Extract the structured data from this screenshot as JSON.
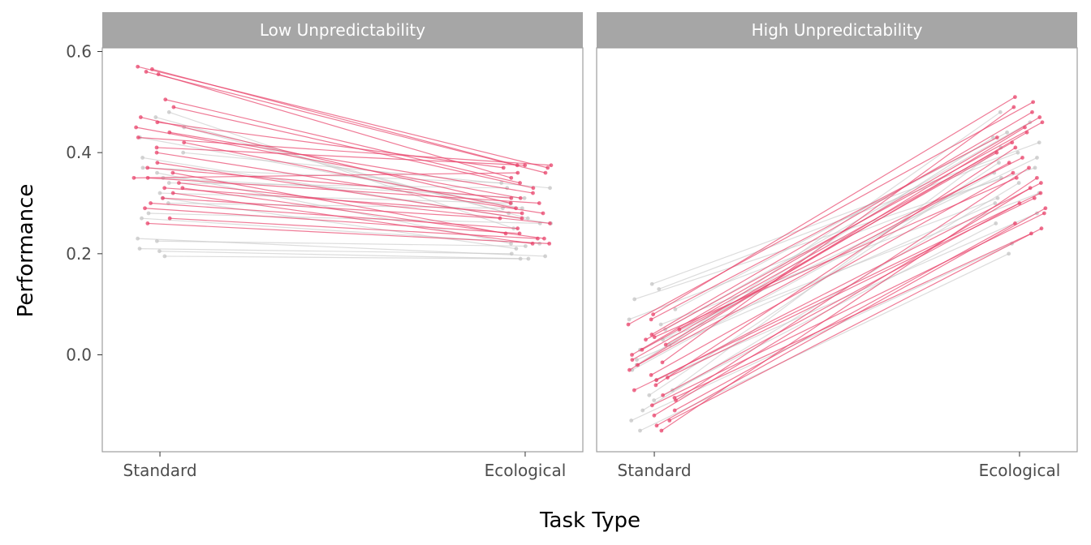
{
  "chart_data": {
    "type": "line",
    "xlabel": "Task Type",
    "ylabel": "Performance",
    "x_categories": [
      "Standard",
      "Ecological"
    ],
    "y_ticks": [
      "0.0",
      "0.2",
      "0.4",
      "0.6"
    ],
    "ylim": [
      -0.19,
      0.6
    ],
    "grid": false,
    "colors": {
      "highlight": "#e8416a",
      "muted": "#c4c4c4",
      "strip": "#a6a6a6",
      "frame": "#9e9e9e"
    },
    "panels": [
      {
        "label": "Low Unpredictability",
        "series": [
          {
            "color": "muted",
            "values": [
              0.205,
              0.19
            ]
          },
          {
            "color": "muted",
            "values": [
              0.21,
              0.2
            ]
          },
          {
            "color": "muted",
            "values": [
              0.225,
              0.215
            ]
          },
          {
            "color": "muted",
            "values": [
              0.23,
              0.195
            ]
          },
          {
            "color": "muted",
            "values": [
              0.195,
              0.19
            ]
          },
          {
            "color": "muted",
            "values": [
              0.28,
              0.26
            ]
          },
          {
            "color": "muted",
            "values": [
              0.3,
              0.29
            ]
          },
          {
            "color": "muted",
            "values": [
              0.32,
              0.3
            ]
          },
          {
            "color": "muted",
            "values": [
              0.34,
              0.33
            ]
          },
          {
            "color": "muted",
            "values": [
              0.35,
              0.31
            ]
          },
          {
            "color": "muted",
            "values": [
              0.37,
              0.34
            ]
          },
          {
            "color": "muted",
            "values": [
              0.4,
              0.33
            ]
          },
          {
            "color": "muted",
            "values": [
              0.43,
              0.29
            ]
          },
          {
            "color": "muted",
            "values": [
              0.45,
              0.28
            ]
          },
          {
            "color": "muted",
            "values": [
              0.47,
              0.27
            ]
          },
          {
            "color": "muted",
            "values": [
              0.48,
              0.25
            ]
          },
          {
            "color": "muted",
            "values": [
              0.39,
              0.26
            ]
          },
          {
            "color": "muted",
            "values": [
              0.36,
              0.22
            ]
          },
          {
            "color": "muted",
            "values": [
              0.31,
              0.21
            ]
          },
          {
            "color": "muted",
            "values": [
              0.27,
              0.22
            ]
          },
          {
            "color": "highlight",
            "values": [
              0.565,
              0.375
            ]
          },
          {
            "color": "highlight",
            "values": [
              0.57,
              0.37
            ]
          },
          {
            "color": "highlight",
            "values": [
              0.56,
              0.36
            ]
          },
          {
            "color": "highlight",
            "values": [
              0.555,
              0.35
            ]
          },
          {
            "color": "highlight",
            "values": [
              0.505,
              0.34
            ]
          },
          {
            "color": "highlight",
            "values": [
              0.49,
              0.33
            ]
          },
          {
            "color": "highlight",
            "values": [
              0.47,
              0.3
            ]
          },
          {
            "color": "highlight",
            "values": [
              0.46,
              0.37
            ]
          },
          {
            "color": "highlight",
            "values": [
              0.45,
              0.31
            ]
          },
          {
            "color": "highlight",
            "values": [
              0.44,
              0.32
            ]
          },
          {
            "color": "highlight",
            "values": [
              0.42,
              0.29
            ]
          },
          {
            "color": "highlight",
            "values": [
              0.41,
              0.375
            ]
          },
          {
            "color": "highlight",
            "values": [
              0.4,
              0.28
            ]
          },
          {
            "color": "highlight",
            "values": [
              0.38,
              0.27
            ]
          },
          {
            "color": "highlight",
            "values": [
              0.37,
              0.31
            ]
          },
          {
            "color": "highlight",
            "values": [
              0.36,
              0.24
            ]
          },
          {
            "color": "highlight",
            "values": [
              0.35,
              0.3
            ]
          },
          {
            "color": "highlight",
            "values": [
              0.34,
              0.26
            ]
          },
          {
            "color": "highlight",
            "values": [
              0.33,
              0.23
            ]
          },
          {
            "color": "highlight",
            "values": [
              0.32,
              0.22
            ]
          },
          {
            "color": "highlight",
            "values": [
              0.31,
              0.27
            ]
          },
          {
            "color": "highlight",
            "values": [
              0.3,
              0.25
            ]
          },
          {
            "color": "highlight",
            "values": [
              0.29,
              0.24
            ]
          },
          {
            "color": "highlight",
            "values": [
              0.27,
              0.23
            ]
          },
          {
            "color": "highlight",
            "values": [
              0.26,
              0.22
            ]
          },
          {
            "color": "highlight",
            "values": [
              0.35,
              0.36
            ]
          },
          {
            "color": "highlight",
            "values": [
              0.33,
              0.28
            ]
          },
          {
            "color": "highlight",
            "values": [
              0.43,
              0.375
            ]
          }
        ]
      },
      {
        "label": "High Unpredictability",
        "series": [
          {
            "color": "muted",
            "values": [
              0.14,
              0.42
            ]
          },
          {
            "color": "muted",
            "values": [
              0.13,
              0.4
            ]
          },
          {
            "color": "muted",
            "values": [
              0.11,
              0.37
            ]
          },
          {
            "color": "muted",
            "values": [
              0.09,
              0.44
            ]
          },
          {
            "color": "muted",
            "values": [
              0.07,
              0.35
            ]
          },
          {
            "color": "muted",
            "values": [
              0.05,
              0.46
            ]
          },
          {
            "color": "muted",
            "values": [
              0.03,
              0.32
            ]
          },
          {
            "color": "muted",
            "values": [
              0.01,
              0.39
            ]
          },
          {
            "color": "muted",
            "values": [
              -0.01,
              0.3
            ]
          },
          {
            "color": "muted",
            "values": [
              -0.03,
              0.36
            ]
          },
          {
            "color": "muted",
            "values": [
              -0.05,
              0.28
            ]
          },
          {
            "color": "muted",
            "values": [
              -0.07,
              0.41
            ]
          },
          {
            "color": "muted",
            "values": [
              -0.09,
              0.26
            ]
          },
          {
            "color": "muted",
            "values": [
              -0.11,
              0.34
            ]
          },
          {
            "color": "muted",
            "values": [
              -0.13,
              0.22
            ]
          },
          {
            "color": "muted",
            "values": [
              -0.15,
              0.2
            ]
          },
          {
            "color": "muted",
            "values": [
              0.02,
              0.48
            ]
          },
          {
            "color": "muted",
            "values": [
              -0.02,
              0.43
            ]
          },
          {
            "color": "muted",
            "values": [
              0.06,
              0.31
            ]
          },
          {
            "color": "muted",
            "values": [
              -0.08,
              0.38
            ]
          },
          {
            "color": "highlight",
            "values": [
              0.08,
              0.51
            ]
          },
          {
            "color": "highlight",
            "values": [
              0.06,
              0.5
            ]
          },
          {
            "color": "highlight",
            "values": [
              0.04,
              0.48
            ]
          },
          {
            "color": "highlight",
            "values": [
              0.03,
              0.46
            ]
          },
          {
            "color": "highlight",
            "values": [
              0.02,
              0.44
            ]
          },
          {
            "color": "highlight",
            "values": [
              0.01,
              0.42
            ]
          },
          {
            "color": "highlight",
            "values": [
              0.0,
              0.47
            ]
          },
          {
            "color": "highlight",
            "values": [
              -0.01,
              0.4
            ]
          },
          {
            "color": "highlight",
            "values": [
              -0.02,
              0.38
            ]
          },
          {
            "color": "highlight",
            "values": [
              -0.03,
              0.45
            ]
          },
          {
            "color": "highlight",
            "values": [
              -0.04,
              0.36
            ]
          },
          {
            "color": "highlight",
            "values": [
              -0.05,
              0.34
            ]
          },
          {
            "color": "highlight",
            "values": [
              -0.06,
              0.41
            ]
          },
          {
            "color": "highlight",
            "values": [
              -0.07,
              0.32
            ]
          },
          {
            "color": "highlight",
            "values": [
              -0.08,
              0.3
            ]
          },
          {
            "color": "highlight",
            "values": [
              -0.09,
              0.37
            ]
          },
          {
            "color": "highlight",
            "values": [
              -0.1,
              0.28
            ]
          },
          {
            "color": "highlight",
            "values": [
              -0.11,
              0.26
            ]
          },
          {
            "color": "highlight",
            "values": [
              -0.12,
              0.33
            ]
          },
          {
            "color": "highlight",
            "values": [
              -0.13,
              0.25
            ]
          },
          {
            "color": "highlight",
            "values": [
              -0.14,
              0.29
            ]
          },
          {
            "color": "highlight",
            "values": [
              -0.15,
              0.35
            ]
          },
          {
            "color": "highlight",
            "values": [
              0.07,
              0.43
            ]
          },
          {
            "color": "highlight",
            "values": [
              0.05,
              0.39
            ]
          },
          {
            "color": "highlight",
            "values": [
              -0.015,
              0.49
            ]
          },
          {
            "color": "highlight",
            "values": [
              -0.045,
              0.31
            ]
          },
          {
            "color": "highlight",
            "values": [
              0.035,
              0.35
            ]
          },
          {
            "color": "highlight",
            "values": [
              -0.085,
              0.24
            ]
          }
        ]
      }
    ]
  }
}
